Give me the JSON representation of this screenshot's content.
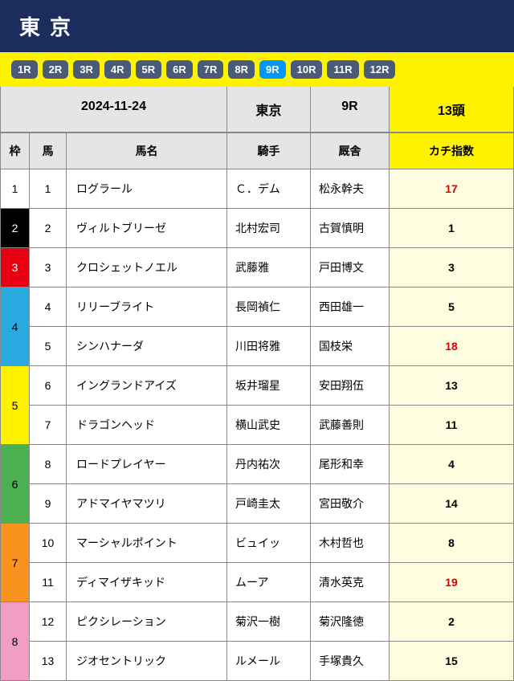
{
  "header": {
    "title": "東京"
  },
  "raceTabs": {
    "items": [
      {
        "label": "1R",
        "active": false
      },
      {
        "label": "2R",
        "active": false
      },
      {
        "label": "3R",
        "active": false
      },
      {
        "label": "4R",
        "active": false
      },
      {
        "label": "5R",
        "active": false
      },
      {
        "label": "6R",
        "active": false
      },
      {
        "label": "7R",
        "active": false
      },
      {
        "label": "8R",
        "active": false
      },
      {
        "label": "9R",
        "active": true
      },
      {
        "label": "10R",
        "active": false
      },
      {
        "label": "11R",
        "active": false
      },
      {
        "label": "12R",
        "active": false
      }
    ]
  },
  "meta": {
    "date": "2024-11-24",
    "venue": "東京",
    "race": "9R",
    "count": "13頭"
  },
  "columns": {
    "waku": "枠",
    "uma": "馬",
    "name": "馬名",
    "jockey": "騎手",
    "stable": "厩舎",
    "index": "カチ指数"
  },
  "rows": [
    {
      "waku": "1",
      "wakuClass": "waku-1",
      "wakuSpan": 1,
      "uma": "1",
      "name": "ログラール",
      "jockey": "Ｃ．デム",
      "stable": "松永幹夫",
      "idx": "17",
      "hot": true
    },
    {
      "waku": "2",
      "wakuClass": "waku-2",
      "wakuSpan": 1,
      "uma": "2",
      "name": "ヴィルトブリーゼ",
      "jockey": "北村宏司",
      "stable": "古賀慎明",
      "idx": "1",
      "hot": false
    },
    {
      "waku": "3",
      "wakuClass": "waku-3",
      "wakuSpan": 1,
      "uma": "3",
      "name": "クロシェットノエル",
      "jockey": "武藤雅",
      "stable": "戸田博文",
      "idx": "3",
      "hot": false
    },
    {
      "waku": "4",
      "wakuClass": "waku-4",
      "wakuSpan": 2,
      "uma": "4",
      "name": "リリーブライト",
      "jockey": "長岡禎仁",
      "stable": "西田雄一",
      "idx": "5",
      "hot": false
    },
    {
      "waku": "",
      "wakuClass": "",
      "wakuSpan": 0,
      "uma": "5",
      "name": "シンハナーダ",
      "jockey": "川田将雅",
      "stable": "国枝栄",
      "idx": "18",
      "hot": true
    },
    {
      "waku": "5",
      "wakuClass": "waku-5",
      "wakuSpan": 2,
      "uma": "6",
      "name": "イングランドアイズ",
      "jockey": "坂井瑠星",
      "stable": "安田翔伍",
      "idx": "13",
      "hot": false
    },
    {
      "waku": "",
      "wakuClass": "",
      "wakuSpan": 0,
      "uma": "7",
      "name": "ドラゴンヘッド",
      "jockey": "横山武史",
      "stable": "武藤善則",
      "idx": "11",
      "hot": false
    },
    {
      "waku": "6",
      "wakuClass": "waku-6",
      "wakuSpan": 2,
      "uma": "8",
      "name": "ロードプレイヤー",
      "jockey": "丹内祐次",
      "stable": "尾形和幸",
      "idx": "4",
      "hot": false
    },
    {
      "waku": "",
      "wakuClass": "",
      "wakuSpan": 0,
      "uma": "9",
      "name": "アドマイヤマツリ",
      "jockey": "戸崎圭太",
      "stable": "宮田敬介",
      "idx": "14",
      "hot": false
    },
    {
      "waku": "7",
      "wakuClass": "waku-7",
      "wakuSpan": 2,
      "uma": "10",
      "name": "マーシャルポイント",
      "jockey": "ビュイッ",
      "stable": "木村哲也",
      "idx": "8",
      "hot": false
    },
    {
      "waku": "",
      "wakuClass": "",
      "wakuSpan": 0,
      "uma": "11",
      "name": "ディマイザキッド",
      "jockey": "ムーア",
      "stable": "清水英克",
      "idx": "19",
      "hot": true
    },
    {
      "waku": "8",
      "wakuClass": "waku-8",
      "wakuSpan": 2,
      "uma": "12",
      "name": "ピクシレーション",
      "jockey": "菊沢一樹",
      "stable": "菊沢隆徳",
      "idx": "2",
      "hot": false
    },
    {
      "waku": "",
      "wakuClass": "",
      "wakuSpan": 0,
      "uma": "13",
      "name": "ジオセントリック",
      "jockey": "ルメール",
      "stable": "手塚貴久",
      "idx": "15",
      "hot": false
    }
  ]
}
